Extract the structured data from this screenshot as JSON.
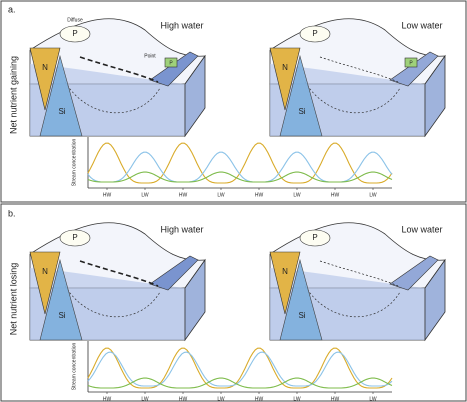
{
  "panels": [
    {
      "label": "a.",
      "side_label": "Net nutrient gaining",
      "blocks": [
        {
          "title": "High water",
          "diffuse": "Diffuse",
          "diffuse_p": "P",
          "point": "Point",
          "point_p": "P",
          "n": "N",
          "si": "Si"
        },
        {
          "title": "Low water",
          "diffuse_p": "P",
          "point_p": "P",
          "n": "N",
          "si": "Si"
        }
      ],
      "chart_ylabel": "Stream concentration",
      "chart_xlabels": [
        "HW",
        "LW",
        "HW",
        "LW",
        "HW",
        "LW",
        "HW",
        "LW"
      ]
    },
    {
      "label": "b.",
      "side_label": "Net nutrient losing",
      "blocks": [
        {
          "title": "High water",
          "diffuse_p": "P",
          "n": "N",
          "si": "Si"
        },
        {
          "title": "Low water",
          "diffuse_p": "P",
          "n": "N",
          "si": "Si"
        }
      ],
      "chart_ylabel": "Stream concentration",
      "chart_xlabels": [
        "HW",
        "LW",
        "HW",
        "LW",
        "HW",
        "LW",
        "HW",
        "LW"
      ]
    }
  ]
}
